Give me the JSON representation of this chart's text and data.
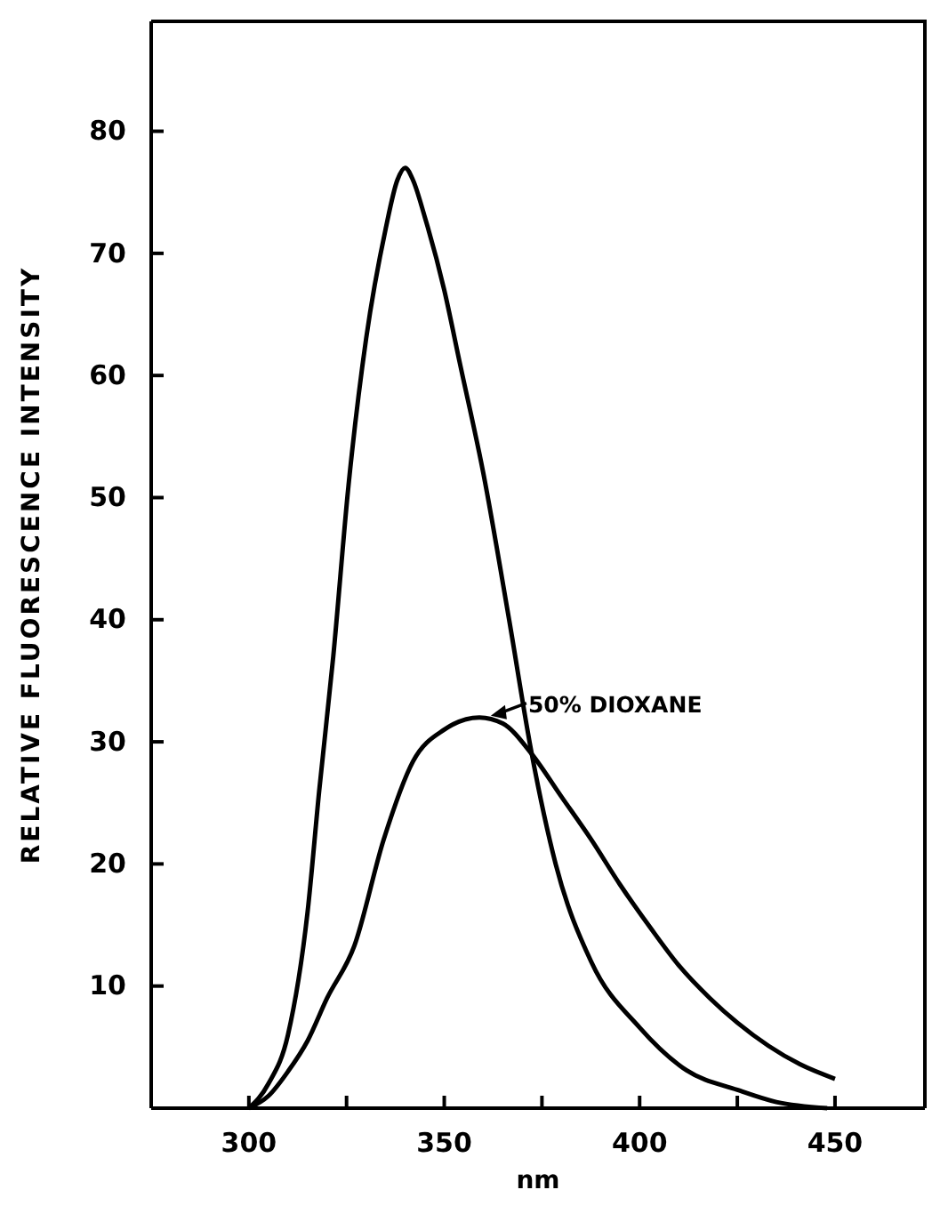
{
  "chart_data": {
    "type": "line",
    "xlabel": "nm",
    "ylabel": "RELATIVE FLUORESCENCE INTENSITY",
    "xlim": [
      275,
      473
    ],
    "xticks": [
      300,
      {
        "value": 325,
        "label": null
      },
      350,
      {
        "value": 375,
        "label": null
      },
      400,
      {
        "value": 425,
        "label": null
      },
      450
    ],
    "ylim": [
      0,
      89
    ],
    "yticks": [
      10,
      20,
      30,
      40,
      50,
      60,
      70,
      80
    ],
    "marker": "none",
    "line_style": "solid",
    "series": [
      {
        "color": "#000000",
        "x": [
          300,
          305,
          310,
          315,
          318,
          321.6,
          325.5,
          330,
          335,
          338,
          340,
          342,
          345,
          350,
          354,
          360,
          366.6,
          372.4,
          378.5,
          387.6,
          400,
          412,
          425,
          435,
          448
        ],
        "values": [
          0,
          2,
          6,
          16,
          26,
          37,
          51,
          63,
          72,
          76,
          77,
          76,
          73,
          67,
          61,
          52,
          40,
          29,
          20,
          12,
          6.6,
          3.1,
          1.5,
          0.5,
          0
        ]
      },
      {
        "color": "#000000",
        "x": [
          300,
          305,
          310,
          315,
          320,
          327,
          334.5,
          342,
          350,
          359,
          365,
          372.4,
          380,
          387.6,
          395,
          402.7,
          410,
          418,
          425,
          433,
          441,
          450
        ],
        "values": [
          0,
          1,
          3,
          5.5,
          9,
          13.3,
          22,
          28.4,
          31,
          32,
          31.5,
          29,
          25.5,
          22,
          18.3,
          14.8,
          11.7,
          9,
          7,
          5.1,
          3.6,
          2.4
        ]
      }
    ],
    "annotations": [
      {
        "text": "50% DIOXANE",
        "x": 361,
        "y": 32
      }
    ]
  }
}
